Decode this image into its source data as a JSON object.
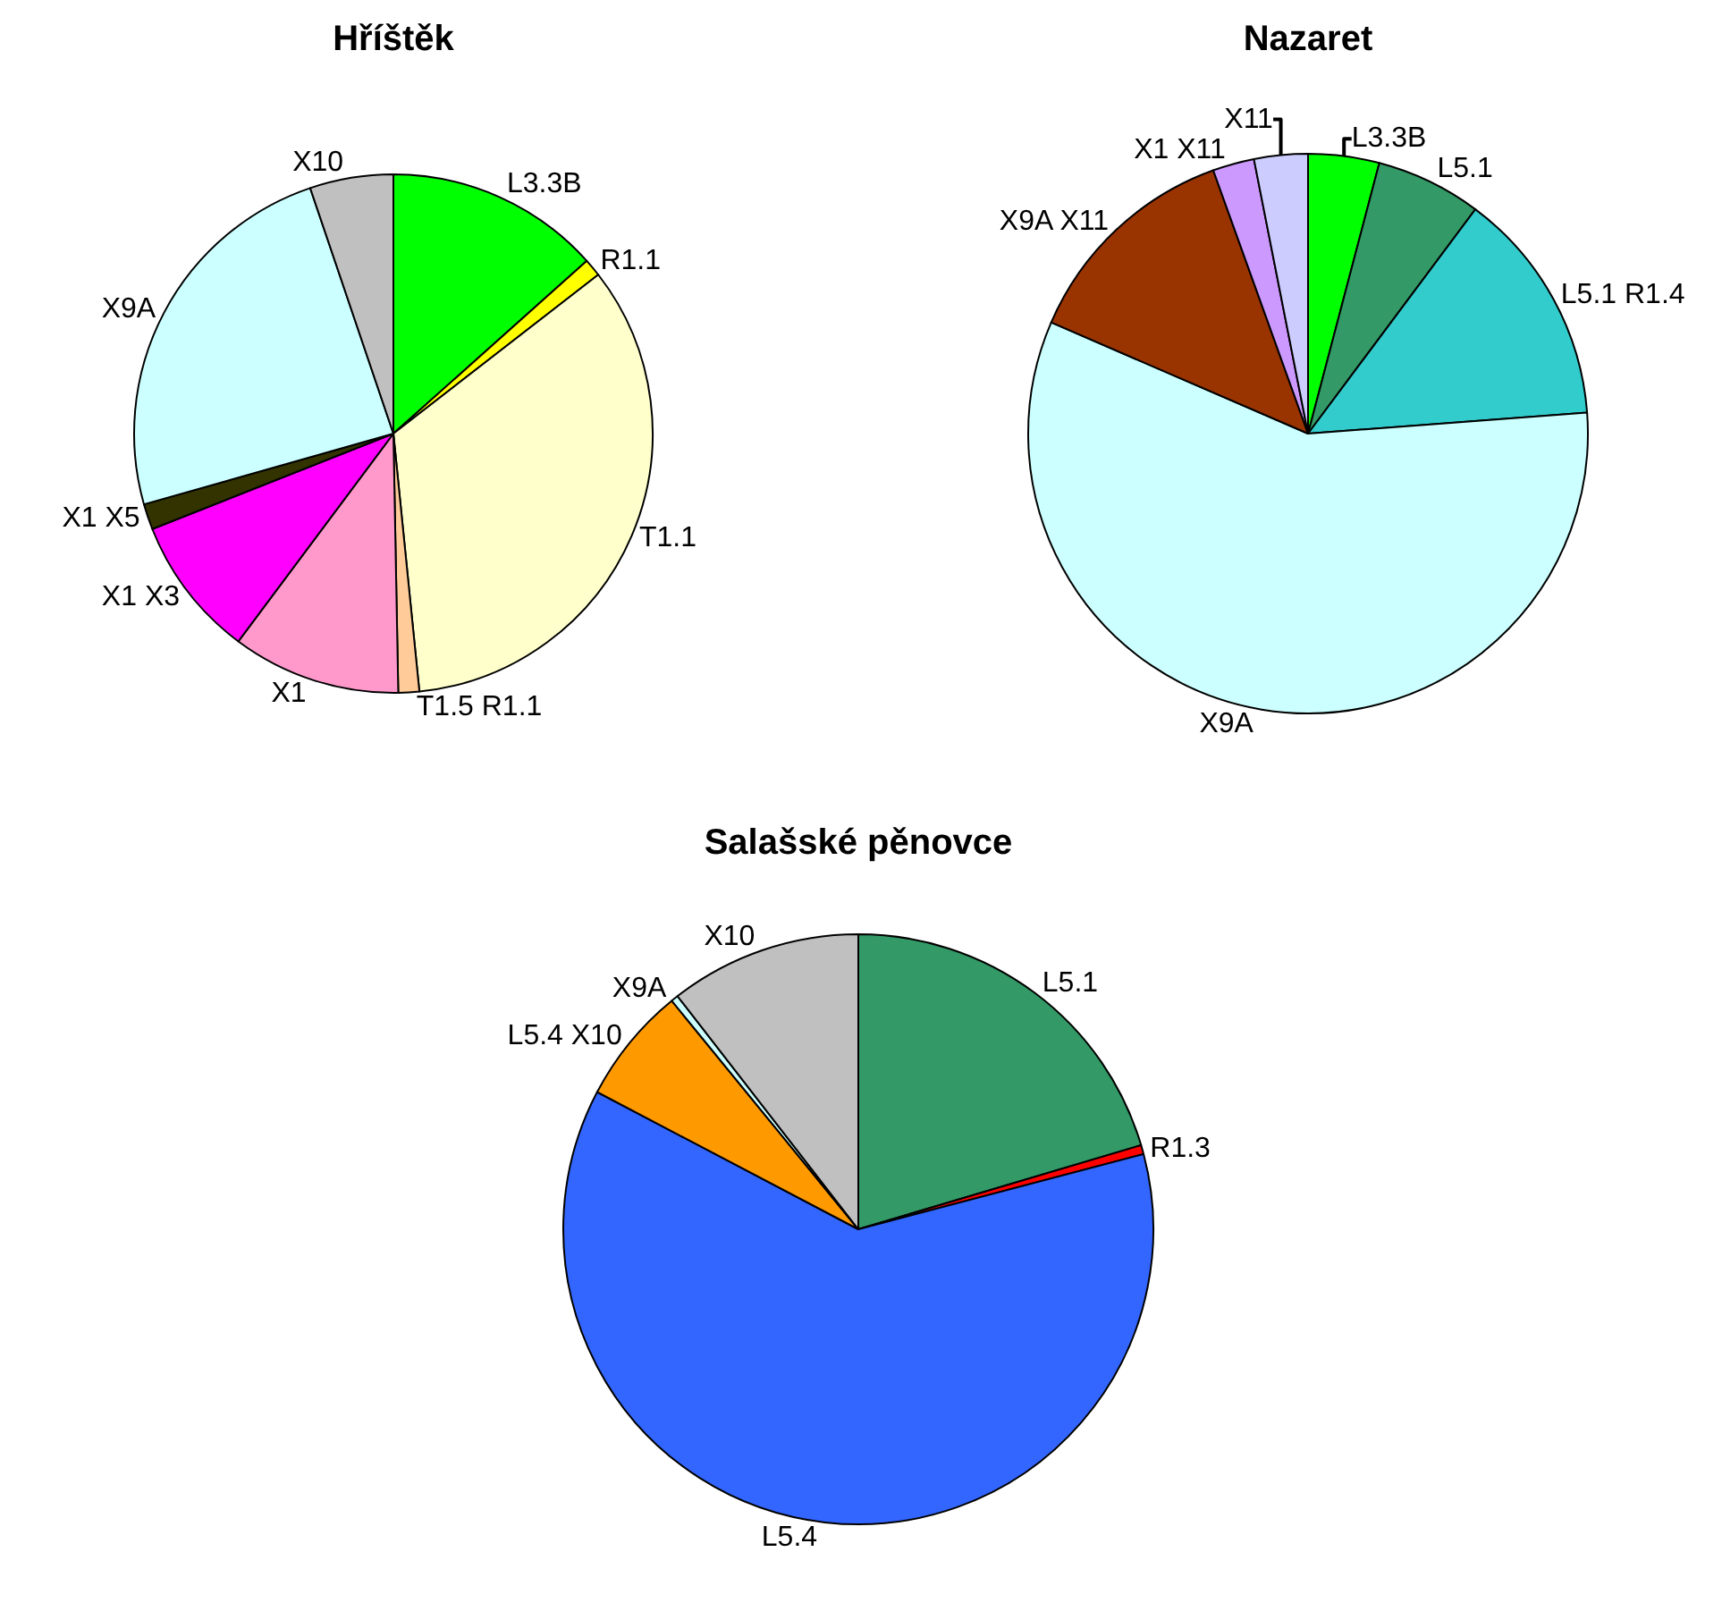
{
  "chart_data": [
    {
      "type": "pie",
      "title": "Hříštěk",
      "categories": [
        "L3.3B",
        "R1.1",
        "T1.1",
        "T1.5 R1.1",
        "X1",
        "X1 X3",
        "X1 X5",
        "X9A",
        "X10"
      ],
      "values": [
        13.4,
        1.1,
        33.9,
        1.3,
        10.5,
        8.8,
        1.6,
        24.2,
        5.2
      ],
      "colors": [
        "#00ff00",
        "#ffff00",
        "#ffffcc",
        "#ffcc99",
        "#ff99cc",
        "#ff00ff",
        "#333300",
        "#ccffff",
        "#c0c0c0"
      ]
    },
    {
      "type": "pie",
      "title": "Nazaret",
      "categories": [
        "L3.3B",
        "L5.1",
        "L5.1 R1.4",
        "X9A",
        "X9A X11",
        "X1 X11",
        "X11"
      ],
      "values": [
        4.1,
        6.1,
        13.6,
        57.7,
        13.0,
        2.4,
        3.1
      ],
      "colors": [
        "#00ff00",
        "#339966",
        "#33cccc",
        "#ccffff",
        "#993300",
        "#cc99ff",
        "#ccccff"
      ]
    },
    {
      "type": "pie",
      "title": "Salašské pěnovce",
      "categories": [
        "L5.1",
        "R1.3",
        "L5.4",
        "L5.4 X10",
        "X9A",
        "X10"
      ],
      "values": [
        20.4,
        0.5,
        61.8,
        6.4,
        0.4,
        10.5
      ],
      "colors": [
        "#339966",
        "#ff0000",
        "#3366ff",
        "#ff9900",
        "#ccffff",
        "#c0c0c0"
      ]
    }
  ]
}
